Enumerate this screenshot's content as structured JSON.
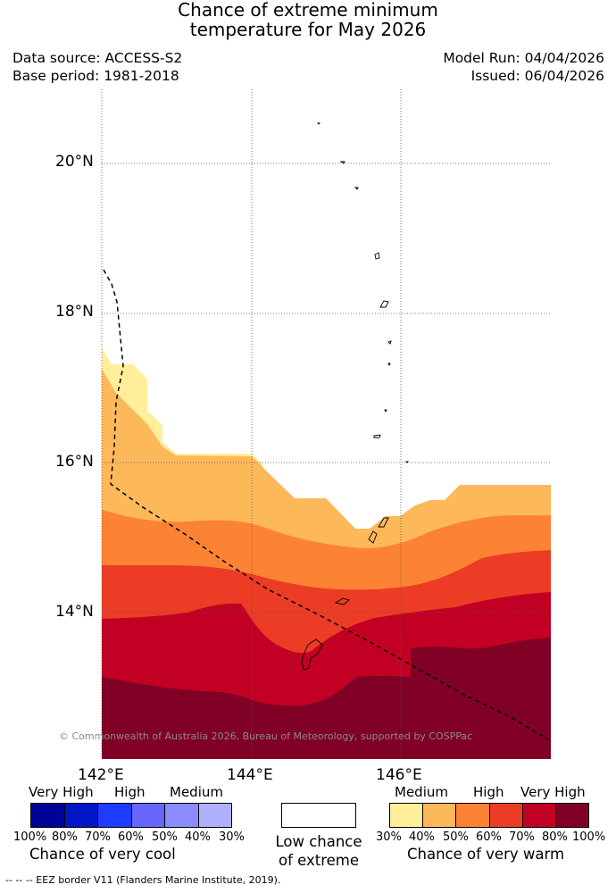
{
  "title": {
    "line1": "Chance of extreme minimum",
    "line2": "temperature for May 2026"
  },
  "meta": {
    "data_source": "Data source: ACCESS-S2",
    "base_period": "Base period: 1981-2018",
    "model_run": "Model Run: 04/04/2026",
    "issued": "Issued: 06/04/2026"
  },
  "axes": {
    "lat_ticks": [
      "20°N",
      "18°N",
      "16°N",
      "14°N"
    ],
    "lon_ticks": [
      "142°E",
      "144°E",
      "146°E"
    ]
  },
  "copyright": "© Commonwealth of Australia 2026, Bureau of Meteorology, supported by COSPPac",
  "legend": {
    "cool": {
      "labels": [
        "Very High",
        "High",
        "Medium"
      ],
      "percentages": [
        "100%",
        "80%",
        "70%",
        "60%",
        "50%",
        "40%",
        "30%"
      ],
      "title": "Chance of very cool",
      "colors": [
        "#00029a",
        "#0017c8",
        "#1e3cff",
        "#6766ff",
        "#8c8cff",
        "#b0b0ff"
      ]
    },
    "neutral": {
      "line1": "Low chance",
      "line2": "of extreme"
    },
    "warm": {
      "labels": [
        "Medium",
        "High",
        "Very High"
      ],
      "percentages": [
        "30%",
        "40%",
        "50%",
        "60%",
        "70%",
        "80%",
        "100%"
      ],
      "title": "Chance of very warm",
      "colors": [
        "#ffef9a",
        "#fdb85a",
        "#fd8334",
        "#ec3c26",
        "#c20023",
        "#800026"
      ]
    }
  },
  "footer": "--  --  -- EEZ border V11 (Flanders Marine Institute, 2019)."
}
